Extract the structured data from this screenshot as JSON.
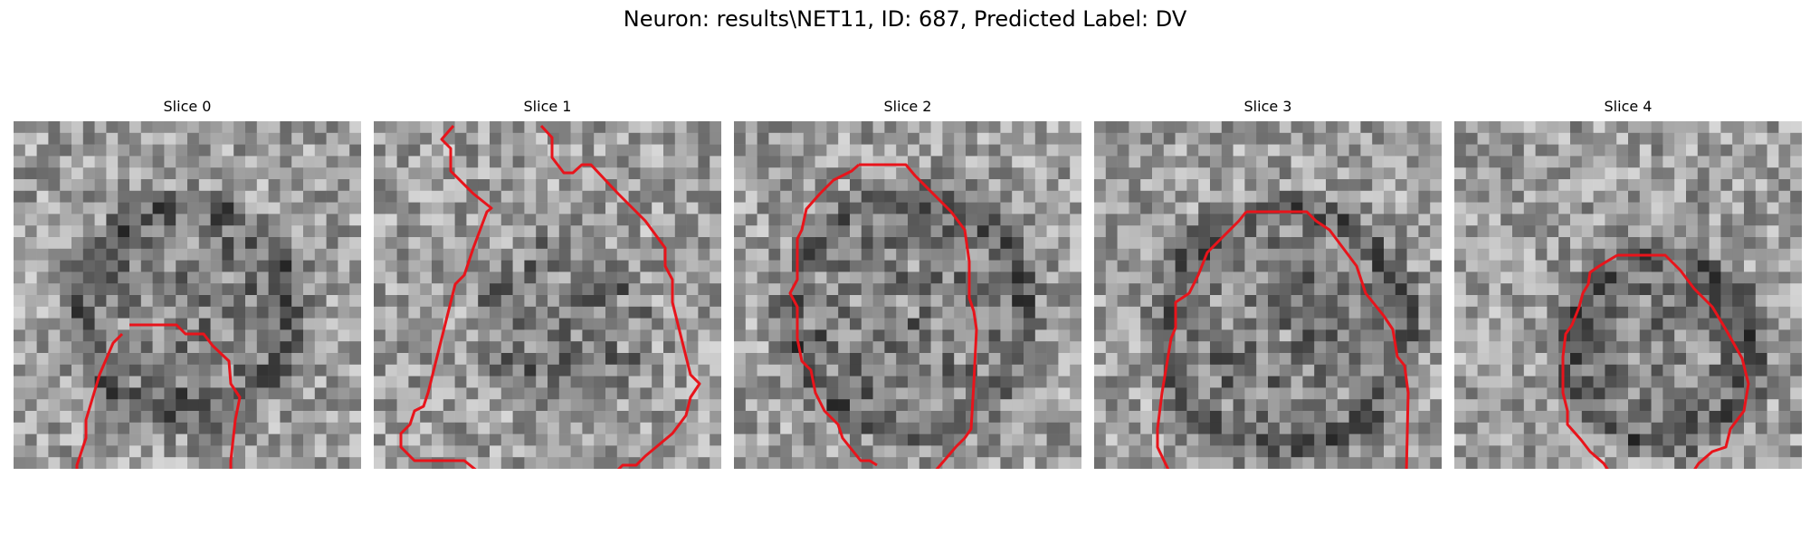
{
  "figure": {
    "title": "Neuron: results\\NET11, ID: 687, Predicted Label: DV"
  },
  "slices": [
    {
      "label": "Slice 0",
      "seed": 11,
      "center": [
        0.5,
        0.55
      ],
      "radius": 0.3,
      "dark_ring": true
    },
    {
      "label": "Slice 1",
      "seed": 23,
      "center": [
        0.55,
        0.58
      ],
      "radius": 0.32,
      "dark_ring": false
    },
    {
      "label": "Slice 2",
      "seed": 37,
      "center": [
        0.5,
        0.55
      ],
      "radius": 0.33,
      "dark_ring": true
    },
    {
      "label": "Slice 3",
      "seed": 53,
      "center": [
        0.55,
        0.6
      ],
      "radius": 0.34,
      "dark_ring": true
    },
    {
      "label": "Slice 4",
      "seed": 71,
      "center": [
        0.6,
        0.66
      ],
      "radius": 0.26,
      "dark_ring": true
    }
  ],
  "contour_color": "#e8141b"
}
